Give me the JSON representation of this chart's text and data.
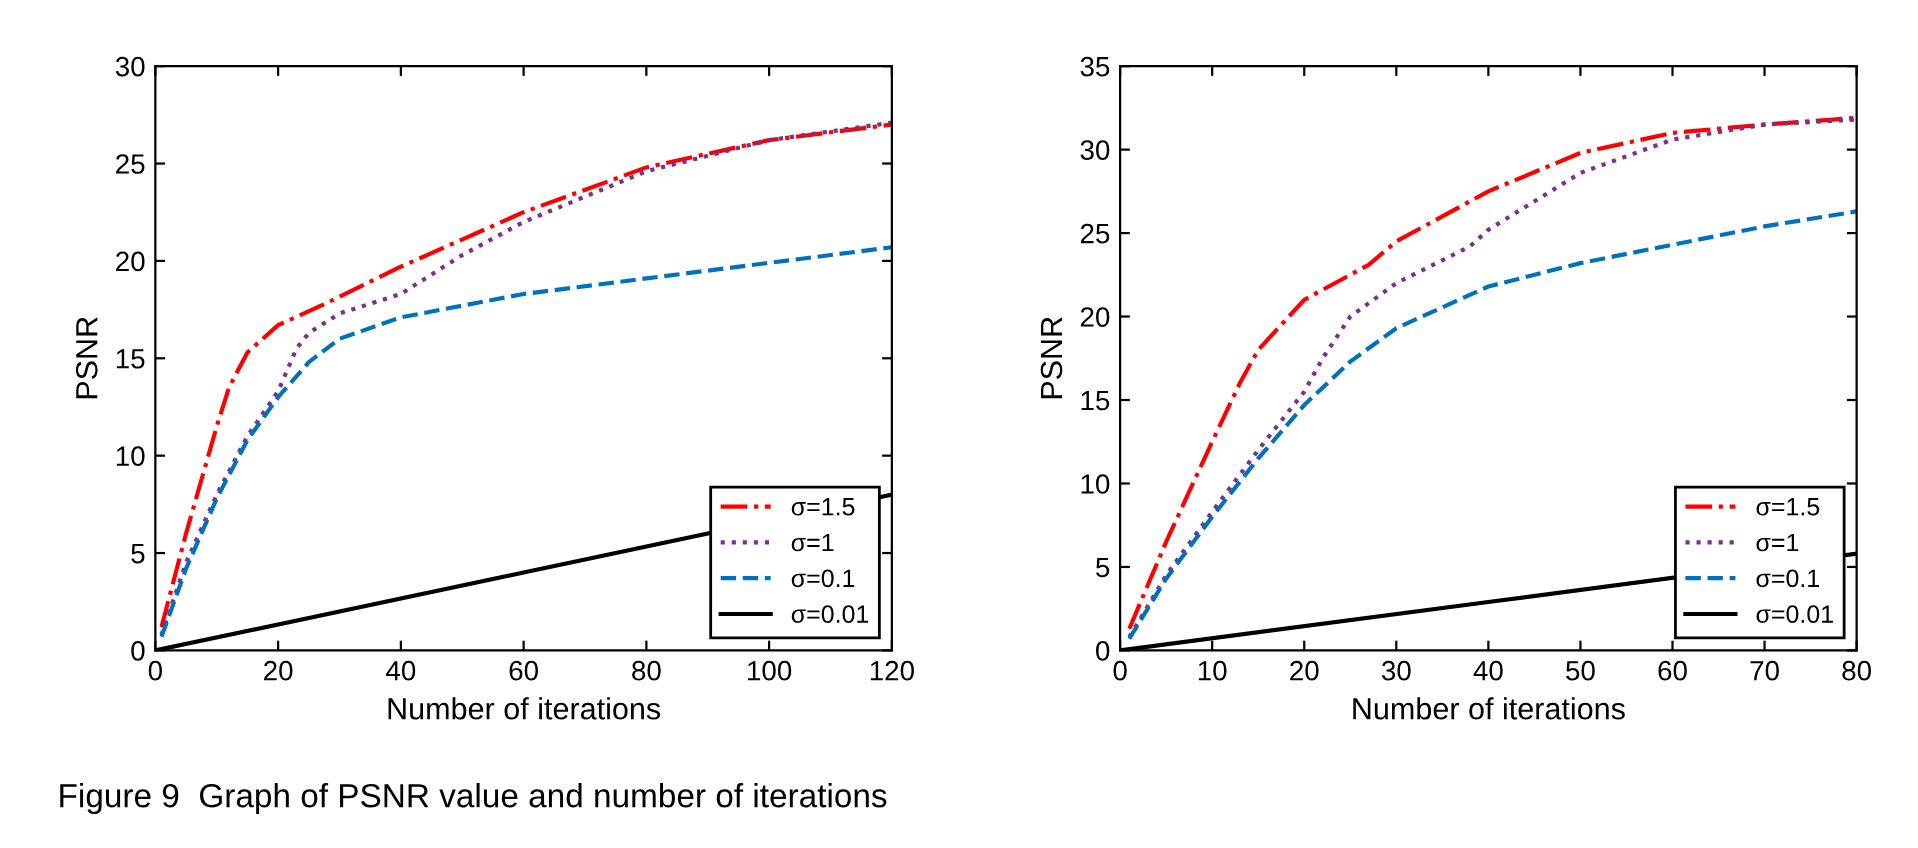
{
  "chart_data": [
    {
      "type": "line",
      "xlabel": "Number of iterations",
      "ylabel": "PSNR",
      "xlim": [
        0,
        120
      ],
      "xticks": [
        0,
        20,
        40,
        60,
        80,
        100,
        120
      ],
      "ylim": [
        0,
        30
      ],
      "yticks": [
        0,
        5,
        10,
        15,
        20,
        25,
        30
      ],
      "grid": false,
      "legend": "bottom right",
      "series": [
        {
          "name": "σ=1.5",
          "color": "#ff0000",
          "line_style": "dashdot",
          "x": [
            1,
            5,
            10,
            12,
            15,
            20,
            27,
            40,
            60,
            80,
            100,
            120
          ],
          "values": [
            1.2,
            6,
            11.5,
            13.5,
            15.3,
            16.7,
            17.7,
            19.7,
            22.5,
            24.8,
            26.2,
            27
          ]
        },
        {
          "name": "σ=1",
          "color": "#7e2f8e",
          "line_style": "dotted",
          "x": [
            1,
            5,
            10,
            15,
            20,
            23,
            25,
            30,
            40,
            50,
            60,
            80,
            100,
            120
          ],
          "values": [
            0.8,
            4.5,
            8,
            11,
            13.3,
            15.5,
            16.3,
            17.3,
            18.3,
            20.3,
            22,
            24.6,
            26.2,
            27.1
          ]
        },
        {
          "name": "σ=0.1",
          "color": "#0072bd",
          "line_style": "dashed",
          "x": [
            1,
            5,
            10,
            15,
            20,
            25,
            30,
            40,
            60,
            80,
            100,
            120
          ],
          "values": [
            0.7,
            4.2,
            7.8,
            10.8,
            13,
            14.8,
            16,
            17.1,
            18.3,
            19.1,
            19.9,
            20.7
          ]
        },
        {
          "name": "σ=0.01",
          "color": "#000000",
          "line_style": "solid",
          "x": [
            0,
            60,
            120
          ],
          "values": [
            0,
            4,
            8
          ]
        }
      ]
    },
    {
      "type": "line",
      "xlabel": "Number of iterations",
      "ylabel": "PSNR",
      "xlim": [
        0,
        80
      ],
      "xticks": [
        0,
        10,
        20,
        30,
        40,
        50,
        60,
        70,
        80
      ],
      "ylim": [
        0,
        35
      ],
      "yticks": [
        0,
        5,
        10,
        15,
        20,
        25,
        30,
        35
      ],
      "grid": false,
      "legend": "bottom right",
      "annotations": [
        "Figure 9  Graph of PSNR value and number of iterations"
      ],
      "series": [
        {
          "name": "σ=1.5",
          "color": "#ff0000",
          "line_style": "dashdot",
          "x": [
            1,
            5,
            10,
            13,
            15,
            20,
            27,
            30,
            40,
            50,
            60,
            70,
            80
          ],
          "values": [
            1.3,
            6.5,
            12.5,
            16,
            18,
            21,
            23.1,
            24.5,
            27.5,
            29.8,
            31,
            31.5,
            31.9
          ]
        },
        {
          "name": "σ=1",
          "color": "#7e2f8e",
          "line_style": "dotted",
          "x": [
            1,
            5,
            10,
            15,
            20,
            22,
            25,
            30,
            38,
            40,
            50,
            60,
            70,
            80
          ],
          "values": [
            0.8,
            4.5,
            8.3,
            12,
            15.5,
            17.5,
            20,
            22,
            24.2,
            25.2,
            28.6,
            30.6,
            31.5,
            31.8
          ]
        },
        {
          "name": "σ=0.1",
          "color": "#0072bd",
          "line_style": "dashed",
          "x": [
            1,
            5,
            10,
            15,
            20,
            25,
            30,
            40,
            50,
            60,
            70,
            80
          ],
          "values": [
            0.7,
            4.3,
            8,
            11.5,
            14.7,
            17.3,
            19.3,
            21.8,
            23.2,
            24.3,
            25.4,
            26.3
          ]
        },
        {
          "name": "σ=0.01",
          "color": "#000000",
          "line_style": "solid",
          "x": [
            0,
            40,
            80
          ],
          "values": [
            0,
            2.9,
            5.8
          ]
        }
      ]
    }
  ]
}
